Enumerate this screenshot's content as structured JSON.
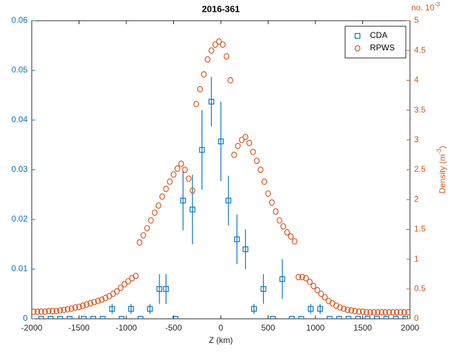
{
  "chart_data": {
    "type": "scatter",
    "title": "2016-361",
    "xlabel": "Z (km)",
    "y2label": [
      "Density (m",
      "-3",
      ")"
    ],
    "y2exponent": [
      "no. 10",
      "-3"
    ],
    "xlim": [
      -2000,
      2000
    ],
    "xticks": [
      -2000,
      -1500,
      -1000,
      -500,
      0,
      500,
      1000,
      1500,
      2000
    ],
    "ylim": [
      0,
      0.06
    ],
    "yticks": [
      0,
      0.01,
      0.02,
      0.03,
      0.04,
      0.05,
      0.06
    ],
    "y2lim": [
      0,
      5
    ],
    "y2ticks": [
      0,
      0.5,
      1,
      1.5,
      2,
      2.5,
      3,
      3.5,
      4,
      4.5,
      5
    ],
    "legend": "top-right",
    "series": [
      {
        "name": "CDA",
        "color": "#0072bd",
        "marker": "square",
        "x": [
          -1900,
          -1800,
          -1700,
          -1600,
          -1450,
          -1350,
          -1250,
          -1150,
          -1050,
          -950,
          -850,
          -750,
          -650,
          -580,
          -480,
          -400,
          -300,
          -200,
          -100,
          0,
          80,
          170,
          260,
          350,
          450,
          550,
          650,
          750,
          850,
          950,
          1050,
          1150,
          1250,
          1350,
          1450,
          1550,
          1650,
          1750,
          1850,
          1950
        ],
        "values": [
          0,
          0,
          0,
          0,
          0,
          0,
          0,
          0.002,
          0,
          0.002,
          0,
          0.002,
          0.006,
          0.006,
          0,
          0.0238,
          0.022,
          0.034,
          0.0437,
          0.0357,
          0.0238,
          0.016,
          0.014,
          0.002,
          0.006,
          0,
          0.008,
          0,
          0,
          0.002,
          0.002,
          0,
          0,
          0,
          0,
          0,
          0,
          0,
          0,
          0
        ],
        "yerr": [
          0,
          0,
          0,
          0,
          0,
          0,
          0,
          0.001,
          0,
          0.001,
          0,
          0.001,
          0.003,
          0.003,
          0,
          0.006,
          0.007,
          0.008,
          0.005,
          0.008,
          0.005,
          0.005,
          0.004,
          0.001,
          0.003,
          0,
          0.004,
          0,
          0,
          0.001,
          0.001,
          0,
          0,
          0,
          0,
          0,
          0,
          0,
          0,
          0
        ]
      },
      {
        "name": "RPWS",
        "color": "#d95319",
        "marker": "circle",
        "axis": "y2",
        "x": [
          -1980,
          -1940,
          -1900,
          -1860,
          -1820,
          -1780,
          -1740,
          -1700,
          -1660,
          -1620,
          -1580,
          -1540,
          -1500,
          -1460,
          -1420,
          -1380,
          -1340,
          -1300,
          -1260,
          -1220,
          -1180,
          -1140,
          -1100,
          -1060,
          -1020,
          -980,
          -940,
          -900,
          -860,
          -820,
          -780,
          -740,
          -700,
          -660,
          -620,
          -580,
          -540,
          -500,
          -460,
          -420,
          -380,
          -340,
          -300,
          -260,
          -220,
          -180,
          -140,
          -100,
          -60,
          -20,
          20,
          60,
          100,
          140,
          180,
          220,
          260,
          300,
          340,
          380,
          420,
          460,
          500,
          540,
          580,
          620,
          660,
          700,
          740,
          780,
          820,
          860,
          900,
          940,
          980,
          1020,
          1060,
          1100,
          1140,
          1180,
          1220,
          1260,
          1300,
          1340,
          1380,
          1420,
          1460,
          1500,
          1540,
          1580,
          1620,
          1660,
          1700,
          1740,
          1780,
          1820,
          1860,
          1900,
          1940,
          1980
        ],
        "values": [
          0.12,
          0.12,
          0.12,
          0.12,
          0.13,
          0.13,
          0.13,
          0.14,
          0.15,
          0.16,
          0.17,
          0.19,
          0.2,
          0.22,
          0.24,
          0.26,
          0.28,
          0.3,
          0.32,
          0.35,
          0.38,
          0.42,
          0.46,
          0.52,
          0.58,
          0.63,
          0.68,
          0.72,
          1.28,
          1.4,
          1.52,
          1.65,
          1.78,
          1.9,
          2.05,
          2.18,
          2.3,
          2.42,
          2.52,
          2.6,
          2.5,
          2.35,
          2.15,
          3.6,
          3.85,
          4.1,
          4.35,
          4.5,
          4.6,
          4.65,
          4.6,
          4.4,
          4.0,
          2.75,
          2.9,
          3.0,
          3.05,
          2.95,
          2.8,
          2.65,
          2.5,
          2.3,
          2.1,
          1.95,
          1.8,
          1.65,
          1.55,
          1.45,
          1.38,
          1.3,
          0.7,
          0.7,
          0.68,
          0.62,
          0.55,
          0.48,
          0.42,
          0.36,
          0.3,
          0.26,
          0.22,
          0.19,
          0.17,
          0.15,
          0.14,
          0.13,
          0.12,
          0.12,
          0.11,
          0.11,
          0.11,
          0.11,
          0.11,
          0.11,
          0.11,
          0.11,
          0.11,
          0.11,
          0.11,
          0.11
        ]
      }
    ]
  }
}
